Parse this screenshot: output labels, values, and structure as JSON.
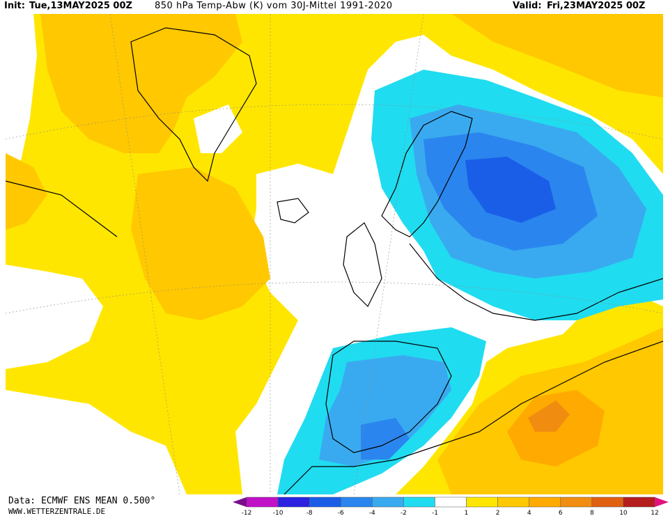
{
  "header": {
    "init_label": "Init:",
    "init_date": "Tue,13MAY2025 00Z",
    "title": "850 hPa Temp-Abw (K) vom 30J-Mittel 1991-2020",
    "valid_label": "Valid:",
    "valid_date": "Fri,23MAY2025 00Z"
  },
  "footer": {
    "data_source": "Data: ECMWF ENS MEAN 0.500°",
    "website": "WWW.WETTERZENTRALE.DE"
  },
  "legend": {
    "ticks": [
      "-12",
      "-10",
      "-8",
      "-6",
      "-4",
      "-2",
      "-1",
      "1",
      "2",
      "4",
      "6",
      "8",
      "10",
      "12"
    ],
    "colors": [
      "#7a0e8c",
      "#c010c8",
      "#2a22e0",
      "#1a5ee8",
      "#2a86ee",
      "#3aaaf0",
      "#20dcf0",
      "#ffffff",
      "#ffe600",
      "#ffc800",
      "#ffaa00",
      "#f08c10",
      "#e06010",
      "#b41e1e",
      "#e0147c"
    ]
  },
  "map": {
    "region": "North Atlantic and Europe",
    "anomaly_colors": {
      "warm_light": "#ffe600",
      "warm_medium": "#ffc800",
      "warm_strong": "#ffaa00",
      "warm_max": "#f08c10",
      "neutral": "#ffffff",
      "cold_light": "#20dcf0",
      "cold_medium": "#3aaaf0",
      "cold_strong": "#2a86ee",
      "cold_max": "#1a5ee8"
    }
  }
}
